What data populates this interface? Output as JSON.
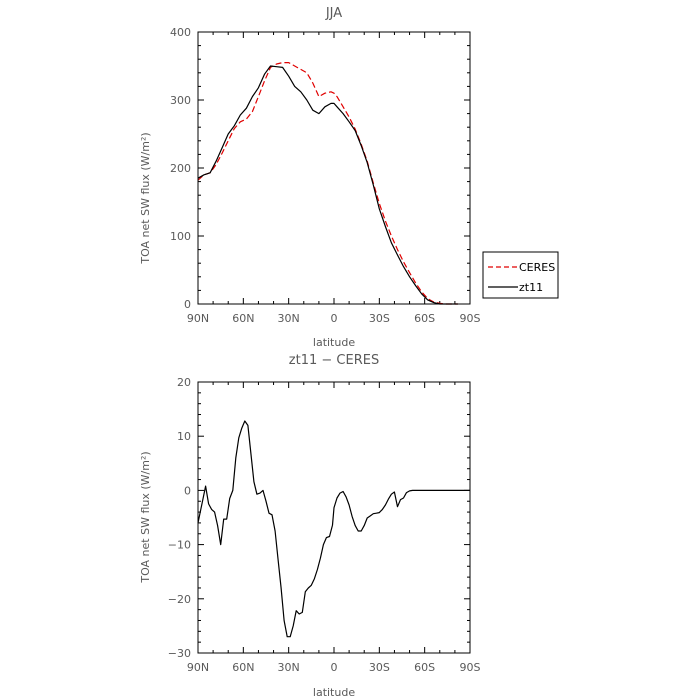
{
  "chart_data": [
    {
      "type": "line",
      "title": "JJA",
      "xlabel": "latitude",
      "ylabel": "TOA net SW flux (W/m²)",
      "xlim": [
        90,
        -90
      ],
      "ylim": [
        0,
        400
      ],
      "xticks": [
        90,
        60,
        30,
        0,
        -30,
        -60,
        -90
      ],
      "xtick_labels": [
        "90N",
        "60N",
        "30N",
        "0",
        "30S",
        "60S",
        "90S"
      ],
      "yticks": [
        0,
        100,
        200,
        300,
        400
      ],
      "ytick_labels": [
        "0",
        "100",
        "200",
        "300",
        "400"
      ],
      "legend_position": "right",
      "series": [
        {
          "name": "CERES",
          "color": "#e00000",
          "dash": "dashed",
          "x": [
            90,
            86,
            82,
            78,
            74,
            70,
            66,
            62,
            58,
            54,
            50,
            46,
            42,
            38,
            34,
            30,
            26,
            22,
            18,
            14,
            10,
            6,
            2,
            0,
            -2,
            -6,
            -10,
            -14,
            -18,
            -22,
            -26,
            -30,
            -34,
            -38,
            -42,
            -46,
            -50,
            -54,
            -58,
            -62,
            -66,
            -70,
            -74,
            -78,
            -82
          ],
          "y": [
            182,
            190,
            193,
            205,
            222,
            240,
            258,
            268,
            272,
            283,
            305,
            328,
            348,
            353,
            355,
            355,
            350,
            345,
            340,
            325,
            305,
            310,
            312,
            310,
            305,
            290,
            275,
            257,
            235,
            210,
            178,
            148,
            122,
            100,
            80,
            62,
            46,
            31,
            18,
            8,
            3,
            1,
            0,
            0,
            0
          ]
        },
        {
          "name": "zt11",
          "color": "#000000",
          "dash": "solid",
          "x": [
            90,
            86,
            82,
            78,
            74,
            70,
            66,
            62,
            58,
            54,
            50,
            46,
            42,
            38,
            34,
            30,
            26,
            22,
            18,
            14,
            10,
            6,
            2,
            0,
            -2,
            -6,
            -10,
            -14,
            -18,
            -22,
            -26,
            -30,
            -34,
            -38,
            -42,
            -46,
            -50,
            -54,
            -58,
            -62,
            -66,
            -70,
            -74,
            -78,
            -82
          ],
          "y": [
            185,
            190,
            193,
            210,
            230,
            250,
            262,
            278,
            288,
            305,
            318,
            338,
            350,
            349,
            348,
            335,
            320,
            312,
            300,
            285,
            280,
            290,
            295,
            295,
            290,
            280,
            268,
            255,
            233,
            208,
            175,
            140,
            114,
            90,
            72,
            55,
            40,
            27,
            15,
            6,
            2,
            0,
            0,
            0,
            0
          ]
        }
      ]
    },
    {
      "type": "line",
      "title": "zt11 − CERES",
      "xlabel": "latitude",
      "ylabel": "TOA net SW flux (W/m²)",
      "xlim": [
        90,
        -90
      ],
      "ylim": [
        -30,
        20
      ],
      "xticks": [
        90,
        60,
        30,
        0,
        -30,
        -60,
        -90
      ],
      "xtick_labels": [
        "90N",
        "60N",
        "30N",
        "0",
        "30S",
        "60S",
        "90S"
      ],
      "yticks": [
        -30,
        -20,
        -10,
        0,
        10,
        20
      ],
      "ytick_labels": [
        "−30",
        "−20",
        "−10",
        "0",
        "10",
        "20"
      ],
      "series": [
        {
          "name": "zt11 − CERES",
          "color": "#000000",
          "dash": "solid",
          "x": [
            90,
            87,
            85,
            83,
            81,
            79,
            77,
            75,
            73,
            71,
            69,
            67,
            65,
            63,
            61,
            59,
            57,
            55,
            53,
            51,
            49,
            47,
            45,
            43,
            41,
            39,
            37,
            35,
            33,
            31,
            29,
            27,
            25,
            23,
            21,
            19,
            17,
            15,
            13,
            11,
            9,
            7,
            5,
            3,
            1,
            0,
            -2,
            -4,
            -6,
            -8,
            -10,
            -12,
            -14,
            -16,
            -18,
            -20,
            -22,
            -24,
            -26,
            -28,
            -30,
            -32,
            -34,
            -36,
            -38,
            -40,
            -42,
            -44,
            -46,
            -48,
            -50,
            -52,
            -54,
            -56,
            -58,
            -60,
            -62,
            -64,
            -66,
            -68,
            -70,
            -72,
            -74,
            -76,
            -78,
            -80,
            -82,
            -84,
            -86,
            -88,
            -90
          ],
          "y": [
            -6,
            -2,
            0.8,
            -2.5,
            -3.5,
            -4,
            -6.5,
            -10,
            -5.3,
            -5.3,
            -1.5,
            0,
            6,
            9.7,
            11.5,
            12.8,
            12,
            6.8,
            1.6,
            -0.7,
            -0.5,
            0,
            -2,
            -4.2,
            -4.5,
            -7.5,
            -12.8,
            -18,
            -24,
            -27,
            -27,
            -25,
            -22.2,
            -22.8,
            -22.5,
            -18.7,
            -18,
            -17.5,
            -16.3,
            -14.6,
            -12.5,
            -10,
            -8.7,
            -8.5,
            -6.4,
            -3.2,
            -1.4,
            -0.5,
            -0.2,
            -1.2,
            -2.7,
            -4.8,
            -6.5,
            -7.5,
            -7.5,
            -6.5,
            -5.1,
            -4.7,
            -4.3,
            -4.2,
            -4.1,
            -3.5,
            -2.7,
            -1.6,
            -0.7,
            -0.3,
            -3,
            -1.7,
            -1.4,
            -0.4,
            -0.1,
            0,
            0,
            0,
            0,
            0,
            0,
            0,
            0,
            0,
            0,
            0,
            0,
            0,
            0,
            0,
            0,
            0,
            0,
            0,
            0
          ]
        }
      ]
    }
  ]
}
